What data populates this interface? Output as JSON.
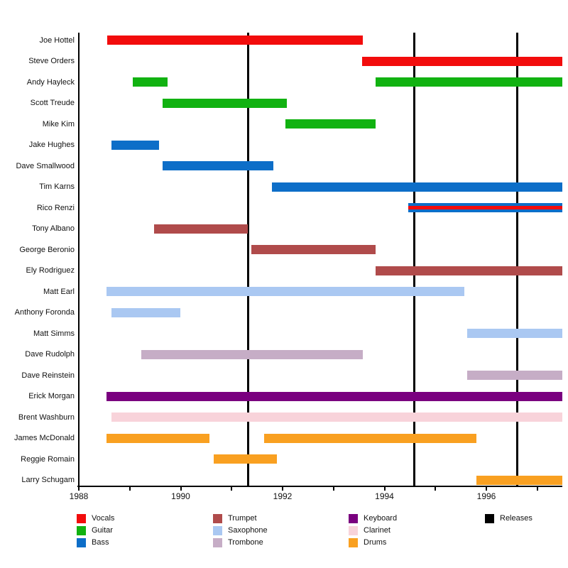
{
  "background_color": "#ffffff",
  "chart_data": {
    "type": "timeline-gantt",
    "title": "",
    "xlabel": "",
    "ylabel": "",
    "x_axis": {
      "min": 1988,
      "max": 1997.49,
      "minor_tick_years": [
        1988,
        1989,
        1990,
        1991,
        1992,
        1993,
        1994,
        1995,
        1996,
        1997
      ],
      "labeled_tick_years": [
        "1988",
        "1990",
        "1992",
        "1994",
        "1996"
      ]
    },
    "grid": "off",
    "legend_position": "bottom",
    "colors": {
      "Vocals": "#f20c0c",
      "Guitar": "#11b211",
      "Bass": "#0d6ec8",
      "Trumpet": "#b04b4b",
      "Saxophone": "#aac8f2",
      "Trombone": "#c6adc6",
      "Keyboard": "#7a007f",
      "Clarinet": "#f8d3da",
      "Drums": "#f9a021",
      "Releases": "#000000"
    },
    "members": [
      {
        "name": "Joe Hottel",
        "segments": [
          {
            "instrument": "Vocals",
            "start": 1988.56,
            "end": 1993.57
          }
        ]
      },
      {
        "name": "Steve Orders",
        "segments": [
          {
            "instrument": "Vocals",
            "start": 1993.56,
            "end": 1997.49
          }
        ]
      },
      {
        "name": "Andy Hayleck",
        "segments": [
          {
            "instrument": "Guitar",
            "start": 1989.06,
            "end": 1989.74
          },
          {
            "instrument": "Guitar",
            "start": 1993.83,
            "end": 1997.49
          }
        ]
      },
      {
        "name": "Scott Treude",
        "segments": [
          {
            "instrument": "Guitar",
            "start": 1989.64,
            "end": 1992.08
          }
        ]
      },
      {
        "name": "Mike Kim",
        "segments": [
          {
            "instrument": "Guitar",
            "start": 1992.06,
            "end": 1993.83
          }
        ]
      },
      {
        "name": "Jake Hughes",
        "segments": [
          {
            "instrument": "Bass",
            "start": 1988.64,
            "end": 1989.57
          }
        ]
      },
      {
        "name": "Dave Smallwood",
        "segments": [
          {
            "instrument": "Bass",
            "start": 1989.64,
            "end": 1991.82
          }
        ]
      },
      {
        "name": "Tim Karns",
        "segments": [
          {
            "instrument": "Bass",
            "start": 1991.79,
            "end": 1997.49
          }
        ]
      },
      {
        "name": "Rico Renzi",
        "segments": [
          {
            "instrument": "Bass",
            "start": 1994.47,
            "end": 1997.49,
            "secondary_instrument": "Vocals"
          }
        ]
      },
      {
        "name": "Tony Albano",
        "segments": [
          {
            "instrument": "Trumpet",
            "start": 1989.48,
            "end": 1991.32
          }
        ]
      },
      {
        "name": "George Beronio",
        "segments": [
          {
            "instrument": "Trumpet",
            "start": 1991.39,
            "end": 1993.83
          }
        ]
      },
      {
        "name": "Ely Rodriguez",
        "segments": [
          {
            "instrument": "Trumpet",
            "start": 1993.83,
            "end": 1997.49
          }
        ]
      },
      {
        "name": "Matt Earl",
        "segments": [
          {
            "instrument": "Saxophone",
            "start": 1988.54,
            "end": 1995.57
          }
        ]
      },
      {
        "name": "Anthony Foronda",
        "segments": [
          {
            "instrument": "Saxophone",
            "start": 1988.64,
            "end": 1990.0
          }
        ]
      },
      {
        "name": "Matt Simms",
        "segments": [
          {
            "instrument": "Saxophone",
            "start": 1995.62,
            "end": 1997.49
          }
        ]
      },
      {
        "name": "Dave Rudolph",
        "segments": [
          {
            "instrument": "Trombone",
            "start": 1989.23,
            "end": 1993.57
          }
        ]
      },
      {
        "name": "Dave Reinstein",
        "segments": [
          {
            "instrument": "Trombone",
            "start": 1995.62,
            "end": 1997.49
          }
        ]
      },
      {
        "name": "Erick Morgan",
        "segments": [
          {
            "instrument": "Keyboard",
            "start": 1988.54,
            "end": 1997.49
          }
        ]
      },
      {
        "name": "Brent Washburn",
        "segments": [
          {
            "instrument": "Clarinet",
            "start": 1988.64,
            "end": 1997.49
          }
        ]
      },
      {
        "name": "James McDonald",
        "segments": [
          {
            "instrument": "Drums",
            "start": 1988.54,
            "end": 1990.56
          },
          {
            "instrument": "Drums",
            "start": 1991.64,
            "end": 1995.8
          }
        ]
      },
      {
        "name": "Reggie Romain",
        "segments": [
          {
            "instrument": "Drums",
            "start": 1990.65,
            "end": 1991.89
          }
        ]
      },
      {
        "name": "Larry Schugam",
        "segments": [
          {
            "instrument": "Drums",
            "start": 1995.8,
            "end": 1997.49
          }
        ]
      }
    ],
    "release_years": [
      1991.32,
      1994.59,
      1996.61
    ],
    "legend_columns": [
      [
        "Vocals",
        "Guitar",
        "Bass"
      ],
      [
        "Trumpet",
        "Saxophone",
        "Trombone"
      ],
      [
        "Keyboard",
        "Clarinet",
        "Drums"
      ],
      [
        "Releases"
      ]
    ]
  }
}
